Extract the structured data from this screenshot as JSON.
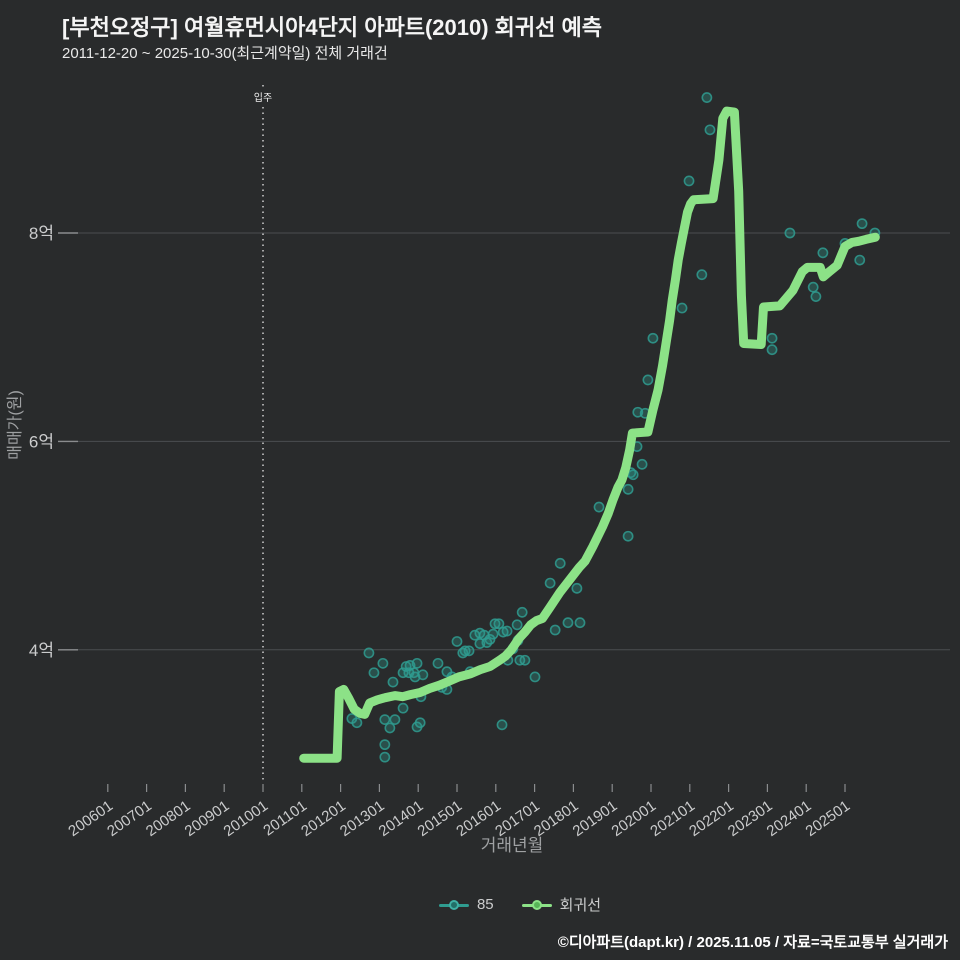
{
  "page": {
    "title": "[부천오정구] 여월휴먼시아4단지 아파트(2010) 회귀선 예측",
    "subtitle": "2011-12-20 ~ 2025-10-30(최근계약일) 전체 거래건",
    "footer": "©디아파트(dapt.kr) / 2025.11.05 / 자료=국토교통부 실거래가"
  },
  "colors": {
    "background": "#292b2c",
    "title_text": "#f5f5f5",
    "subtitle_text": "#e9e9e9",
    "tick_text": "#cbcccd",
    "axis_title_text": "#9fa1a3",
    "grid": "#4b4e50",
    "tick_mark": "#8a8c8e",
    "annotation_line": "#dcdcdc",
    "annotation_text": "#f0f0f0",
    "scatter": "#2f9c90",
    "regression": "#8ce287",
    "footer_text": "#ffffff"
  },
  "annotation": {
    "label": "입주",
    "year": 2010
  },
  "chart_data": {
    "type": "scatter",
    "title": "[부천오정구] 여월휴먼시아4단지 아파트(2010) 회귀선 예측",
    "subtitle": "2011-12-20 ~ 2025-10-30(최근계약일) 전체 거래건",
    "xlabel": "거래년월",
    "ylabel": "매매가(원)",
    "unit": "억원",
    "grid": "horizontal-only",
    "legend_position": "bottom-center",
    "x_range_years": [
      2004.8,
      2027.7
    ],
    "y_range_eok": [
      2.65,
      9.42
    ],
    "y_ticks": [
      {
        "value": 4,
        "label": "4억"
      },
      {
        "value": 6,
        "label": "6억"
      },
      {
        "value": 8,
        "label": "8억"
      }
    ],
    "x_ticks": [
      {
        "year": 2006,
        "label": "200601"
      },
      {
        "year": 2007,
        "label": "200701"
      },
      {
        "year": 2008,
        "label": "200801"
      },
      {
        "year": 2009,
        "label": "200901"
      },
      {
        "year": 2010,
        "label": "201001"
      },
      {
        "year": 2011,
        "label": "201101"
      },
      {
        "year": 2012,
        "label": "201201"
      },
      {
        "year": 2013,
        "label": "201301"
      },
      {
        "year": 2014,
        "label": "201401"
      },
      {
        "year": 2015,
        "label": "201501"
      },
      {
        "year": 2016,
        "label": "201601"
      },
      {
        "year": 2017,
        "label": "201701"
      },
      {
        "year": 2018,
        "label": "201801"
      },
      {
        "year": 2019,
        "label": "201901"
      },
      {
        "year": 2020,
        "label": "202001"
      },
      {
        "year": 2021,
        "label": "202101"
      },
      {
        "year": 2022,
        "label": "202201"
      },
      {
        "year": 2023,
        "label": "202301"
      },
      {
        "year": 2024,
        "label": "202401"
      },
      {
        "year": 2025,
        "label": "202501"
      }
    ],
    "series": [
      {
        "name": "85",
        "type": "scatter",
        "color": "#2f9c90",
        "points": [
          [
            2012.29,
            3.34
          ],
          [
            2012.42,
            3.3
          ],
          [
            2012.73,
            3.97
          ],
          [
            2012.86,
            3.78
          ],
          [
            2013.09,
            3.87
          ],
          [
            2013.14,
            3.33
          ],
          [
            2013.14,
            3.09
          ],
          [
            2013.14,
            2.97
          ],
          [
            2013.27,
            3.25
          ],
          [
            2013.35,
            3.69
          ],
          [
            2013.4,
            3.33
          ],
          [
            2013.61,
            3.78
          ],
          [
            2013.61,
            3.44
          ],
          [
            2013.69,
            3.84
          ],
          [
            2013.76,
            3.78
          ],
          [
            2013.79,
            3.85
          ],
          [
            2013.89,
            3.78
          ],
          [
            2013.92,
            3.74
          ],
          [
            2013.97,
            3.87
          ],
          [
            2013.97,
            3.26
          ],
          [
            2014.05,
            3.3
          ],
          [
            2014.07,
            3.55
          ],
          [
            2014.12,
            3.76
          ],
          [
            2014.51,
            3.87
          ],
          [
            2014.61,
            3.64
          ],
          [
            2014.74,
            3.79
          ],
          [
            2014.74,
            3.62
          ],
          [
            2014.87,
            3.74
          ],
          [
            2015.0,
            4.08
          ],
          [
            2015.15,
            3.97
          ],
          [
            2015.21,
            3.99
          ],
          [
            2015.31,
            3.99
          ],
          [
            2015.34,
            3.79
          ],
          [
            2015.46,
            4.14
          ],
          [
            2015.59,
            4.16
          ],
          [
            2015.59,
            4.06
          ],
          [
            2015.7,
            4.14
          ],
          [
            2015.77,
            4.07
          ],
          [
            2015.85,
            4.1
          ],
          [
            2015.93,
            4.15
          ],
          [
            2015.98,
            4.25
          ],
          [
            2016.08,
            4.25
          ],
          [
            2016.16,
            3.28
          ],
          [
            2016.19,
            4.17
          ],
          [
            2016.29,
            4.18
          ],
          [
            2016.31,
            3.9
          ],
          [
            2016.44,
            4.01
          ],
          [
            2016.55,
            4.24
          ],
          [
            2016.57,
            4.09
          ],
          [
            2016.62,
            3.9
          ],
          [
            2016.68,
            4.36
          ],
          [
            2016.75,
            3.9
          ],
          [
            2017.01,
            3.74
          ],
          [
            2017.4,
            4.64
          ],
          [
            2017.53,
            4.19
          ],
          [
            2017.66,
            4.83
          ],
          [
            2017.86,
            4.26
          ],
          [
            2018.09,
            4.59
          ],
          [
            2018.17,
            4.26
          ],
          [
            2018.66,
            5.37
          ],
          [
            2019.41,
            5.09
          ],
          [
            2019.41,
            5.54
          ],
          [
            2019.48,
            5.7
          ],
          [
            2019.54,
            5.68
          ],
          [
            2019.64,
            5.95
          ],
          [
            2019.66,
            6.28
          ],
          [
            2019.77,
            5.78
          ],
          [
            2019.85,
            6.27
          ],
          [
            2019.92,
            6.59
          ],
          [
            2020.05,
            6.99
          ],
          [
            2020.8,
            7.28
          ],
          [
            2020.98,
            8.5
          ],
          [
            2021.31,
            7.6
          ],
          [
            2021.44,
            9.3
          ],
          [
            2021.52,
            8.99
          ],
          [
            2023.12,
            6.99
          ],
          [
            2023.12,
            6.88
          ],
          [
            2023.58,
            8.0
          ],
          [
            2024.18,
            7.48
          ],
          [
            2024.25,
            7.39
          ],
          [
            2024.43,
            7.81
          ],
          [
            2025.0,
            7.9
          ],
          [
            2025.38,
            7.74
          ],
          [
            2025.44,
            8.09
          ],
          [
            2025.77,
            8.0
          ]
        ]
      },
      {
        "name": "회귀선",
        "type": "line",
        "color": "#8ce287",
        "points": [
          [
            2011.05,
            2.96
          ],
          [
            2011.91,
            2.96
          ],
          [
            2011.97,
            3.6
          ],
          [
            2012.08,
            3.62
          ],
          [
            2012.2,
            3.54
          ],
          [
            2012.35,
            3.43
          ],
          [
            2012.5,
            3.39
          ],
          [
            2012.62,
            3.38
          ],
          [
            2012.75,
            3.49
          ],
          [
            2012.95,
            3.52
          ],
          [
            2013.15,
            3.54
          ],
          [
            2013.4,
            3.56
          ],
          [
            2013.6,
            3.55
          ],
          [
            2013.8,
            3.57
          ],
          [
            2014.05,
            3.59
          ],
          [
            2014.3,
            3.63
          ],
          [
            2014.55,
            3.66
          ],
          [
            2014.8,
            3.7
          ],
          [
            2015.05,
            3.74
          ],
          [
            2015.35,
            3.77
          ],
          [
            2015.6,
            3.81
          ],
          [
            2015.85,
            3.84
          ],
          [
            2016.1,
            3.9
          ],
          [
            2016.25,
            3.94
          ],
          [
            2016.4,
            4.0
          ],
          [
            2016.6,
            4.11
          ],
          [
            2016.75,
            4.17
          ],
          [
            2016.9,
            4.24
          ],
          [
            2017.05,
            4.28
          ],
          [
            2017.2,
            4.3
          ],
          [
            2017.4,
            4.41
          ],
          [
            2017.65,
            4.55
          ],
          [
            2017.9,
            4.67
          ],
          [
            2018.15,
            4.79
          ],
          [
            2018.3,
            4.85
          ],
          [
            2018.5,
            4.99
          ],
          [
            2018.75,
            5.18
          ],
          [
            2018.9,
            5.31
          ],
          [
            2019.02,
            5.44
          ],
          [
            2019.15,
            5.56
          ],
          [
            2019.25,
            5.63
          ],
          [
            2019.35,
            5.75
          ],
          [
            2019.45,
            5.92
          ],
          [
            2019.52,
            6.08
          ],
          [
            2019.92,
            6.09
          ],
          [
            2020.05,
            6.3
          ],
          [
            2020.18,
            6.49
          ],
          [
            2020.3,
            6.73
          ],
          [
            2020.4,
            6.97
          ],
          [
            2020.48,
            7.16
          ],
          [
            2020.55,
            7.36
          ],
          [
            2020.63,
            7.55
          ],
          [
            2020.7,
            7.74
          ],
          [
            2020.78,
            7.9
          ],
          [
            2020.86,
            8.05
          ],
          [
            2020.94,
            8.2
          ],
          [
            2021.02,
            8.28
          ],
          [
            2021.1,
            8.32
          ],
          [
            2021.6,
            8.33
          ],
          [
            2021.75,
            8.7
          ],
          [
            2021.85,
            9.1
          ],
          [
            2021.95,
            9.17
          ],
          [
            2022.15,
            9.16
          ],
          [
            2022.26,
            8.4
          ],
          [
            2022.33,
            7.4
          ],
          [
            2022.39,
            6.94
          ],
          [
            2022.84,
            6.93
          ],
          [
            2022.9,
            7.29
          ],
          [
            2023.32,
            7.3
          ],
          [
            2023.5,
            7.38
          ],
          [
            2023.66,
            7.45
          ],
          [
            2023.9,
            7.63
          ],
          [
            2024.03,
            7.67
          ],
          [
            2024.36,
            7.67
          ],
          [
            2024.44,
            7.58
          ],
          [
            2024.6,
            7.63
          ],
          [
            2024.8,
            7.69
          ],
          [
            2025.0,
            7.87
          ],
          [
            2025.18,
            7.91
          ],
          [
            2025.35,
            7.92
          ],
          [
            2025.55,
            7.94
          ],
          [
            2025.78,
            7.96
          ]
        ]
      }
    ]
  }
}
